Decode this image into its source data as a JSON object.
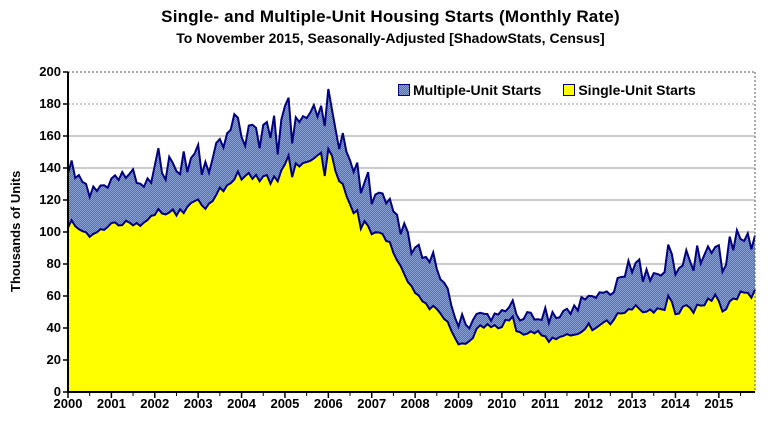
{
  "title": "Single- and Multiple-Unit Housing Starts (Monthly Rate)",
  "subtitle": "To November 2015, Seasonally-Adjusted [ShadowStats, Census]",
  "y_axis": {
    "label": "Thousands of Units",
    "min": 0,
    "max": 200,
    "tick_step": 20
  },
  "x_axis": {
    "years": [
      "2000",
      "2001",
      "2002",
      "2003",
      "2004",
      "2005",
      "2006",
      "2007",
      "2008",
      "2009",
      "2010",
      "2011",
      "2012",
      "2013",
      "2014",
      "2015"
    ]
  },
  "legend": {
    "multiple_label": "Multiple-Unit Starts",
    "single_label": "Single-Unit Starts"
  },
  "colors": {
    "single_fill": "#ffff00",
    "multiple_fill_dark": "#4a71b8",
    "multiple_fill_light": "#8ca3d8",
    "line": "#000080",
    "grid": "#999999",
    "axis": "#000000",
    "border_dotted": "#555555",
    "background": "#ffffff"
  },
  "chart_data": {
    "type": "area",
    "stacked": true,
    "x_start": "2000-01",
    "x_end": "2015-11",
    "x_unit": "month",
    "ylim": [
      0,
      200
    ],
    "ylabel": "Thousands of Units",
    "grid": true,
    "legend_position": "top-inside",
    "series": [
      {
        "name": "Single-Unit Starts",
        "color": "#ffff00",
        "values": [
          102.8,
          107.4,
          103.6,
          101.8,
          100.5,
          99.8,
          97.0,
          98.8,
          99.8,
          101.8,
          101.3,
          103.2,
          105.6,
          106.0,
          104.1,
          104.3,
          107.0,
          105.9,
          104.1,
          105.6,
          103.8,
          105.9,
          107.5,
          110.1,
          110.6,
          114.3,
          111.6,
          111.0,
          112.2,
          114.1,
          110.3,
          114.2,
          111.8,
          115.7,
          118.1,
          119.3,
          120.3,
          116.7,
          114.5,
          117.8,
          119.3,
          123.2,
          127.8,
          125.5,
          129.2,
          130.5,
          132.8,
          137.8,
          132.7,
          135.0,
          136.9,
          133.2,
          135.7,
          131.7,
          134.8,
          135.6,
          130.1,
          134.8,
          131.7,
          138.5,
          142.3,
          147.8,
          134.3,
          142.9,
          140.9,
          143.1,
          143.7,
          144.5,
          146.0,
          147.9,
          149.5,
          135.0,
          151.9,
          147.7,
          137.8,
          131.8,
          130.0,
          122.6,
          117.3,
          111.7,
          113.6,
          102.0,
          106.8,
          103.8,
          98.6,
          99.8,
          99.7,
          98.8,
          94.3,
          93.8,
          86.9,
          82.3,
          78.8,
          73.7,
          68.7,
          66.2,
          61.9,
          60.3,
          56.7,
          55.4,
          51.7,
          53.9,
          51.9,
          49.1,
          45.7,
          43.9,
          38.4,
          33.9,
          29.8,
          30.4,
          30.1,
          31.8,
          33.8,
          39.5,
          41.7,
          40.2,
          42.4,
          40.5,
          41.8,
          39.8,
          40.6,
          45.1,
          44.7,
          47.3,
          38.0,
          37.4,
          35.8,
          36.4,
          37.9,
          36.7,
          38.2,
          35.3,
          34.8,
          31.3,
          34.0,
          33.0,
          34.4,
          35.0,
          36.2,
          35.3,
          35.8,
          36.2,
          37.5,
          39.3,
          42.8,
          38.6,
          40.0,
          41.7,
          43.3,
          44.8,
          42.3,
          45.3,
          49.3,
          49.1,
          49.5,
          51.8,
          51.5,
          54.3,
          51.9,
          49.8,
          50.2,
          51.6,
          49.6,
          52.3,
          51.8,
          51.2,
          60.2,
          56.4,
          48.6,
          49.1,
          53.3,
          54.3,
          52.7,
          49.5,
          54.6,
          54.0,
          54.2,
          58.4,
          57.0,
          60.9,
          56.8,
          50.3,
          51.7,
          56.7,
          58.4,
          57.9,
          62.8,
          62.1,
          62.0,
          58.9,
          64.0
        ]
      },
      {
        "name": "Multiple-Unit Starts",
        "color": "#4a71b8",
        "values": [
          33.6,
          37.3,
          30.1,
          33.8,
          30.8,
          30.2,
          24.9,
          29.6,
          25.8,
          27.3,
          27.9,
          24.5,
          27.8,
          29.4,
          28.4,
          33.2,
          26.8,
          30.4,
          35.1,
          25.0,
          26.4,
          22.4,
          26.0,
          20.6,
          30.9,
          38.1,
          25.3,
          21.7,
          34.8,
          29.0,
          27.7,
          21.9,
          38.6,
          21.7,
          28.0,
          29.7,
          34.2,
          19.1,
          29.3,
          19.2,
          26.6,
          32.4,
          30.3,
          27.3,
          32.4,
          33.4,
          40.8,
          33.6,
          26.6,
          18.8,
          29.6,
          33.8,
          29.4,
          20.7,
          32.1,
          33.1,
          28.7,
          37.9,
          16.8,
          31.7,
          36.4,
          36.1,
          21.1,
          28.8,
          27.8,
          29.3,
          27.5,
          30.1,
          33.3,
          24.2,
          29.4,
          31.2,
          37.5,
          28.9,
          26.3,
          20.0,
          31.8,
          27.6,
          27.5,
          25.8,
          29.8,
          22.3,
          24.1,
          33.6,
          18.8,
          23.6,
          24.9,
          25.3,
          23.6,
          26.9,
          25.9,
          28.5,
          19.8,
          31.7,
          31.1,
          20.3,
          28.4,
          31.7,
          27.1,
          29.0,
          29.4,
          33.3,
          25.0,
          21.3,
          22.7,
          20.8,
          15.9,
          12.8,
          11.1,
          18.1,
          12.0,
          8.0,
          11.2,
          9.3,
          7.8,
          8.7,
          6.3,
          4.0,
          7.3,
          8.6,
          10.6,
          5.3,
          8.3,
          10.0,
          10.6,
          7.3,
          9.8,
          13.5,
          11.6,
          8.6,
          7.3,
          9.7,
          17.8,
          11.8,
          16.0,
          13.2,
          12.3,
          15.7,
          15.8,
          13.5,
          18.3,
          14.7,
          21.8,
          18.5,
          17.3,
          21.3,
          18.8,
          20.6,
          18.7,
          18.1,
          18.4,
          17.2,
          21.9,
          22.8,
          22.6,
          30.2,
          23.3,
          26.4,
          30.9,
          19.1,
          26.4,
          18.0,
          24.7,
          21.5,
          21.0,
          23.8,
          31.9,
          29.8,
          24.8,
          28.3,
          25.8,
          34.3,
          29.3,
          26.3,
          36.9,
          26.3,
          31.5,
          32.6,
          29.9,
          29.7,
          34.9,
          24.8,
          27.8,
          40.4,
          30.2,
          43.2,
          32.8,
          32.3,
          37.1,
          30.3,
          33.8
        ]
      }
    ]
  }
}
